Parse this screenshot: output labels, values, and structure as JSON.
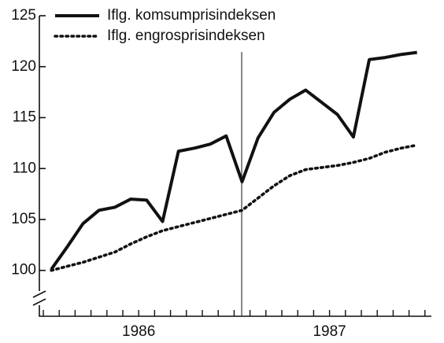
{
  "chart_data": {
    "type": "line",
    "categories": [
      null,
      null,
      null,
      null,
      null,
      null,
      null,
      null,
      null,
      null,
      null,
      null,
      null,
      null,
      null,
      null,
      null,
      null,
      null,
      null,
      null,
      null,
      null,
      null
    ],
    "year_labels": [
      "1986",
      "1987"
    ],
    "series": [
      {
        "name": "Iflg. komsumprisindeksen",
        "color": "#111111",
        "style": "solid",
        "values": [
          100.1,
          102.3,
          104.6,
          105.9,
          106.2,
          107.0,
          106.9,
          104.8,
          111.7,
          112.0,
          112.4,
          113.2,
          108.7,
          113.0,
          115.5,
          116.8,
          117.7,
          116.5,
          115.3,
          113.1,
          120.7,
          120.9,
          121.2,
          121.4
        ]
      },
      {
        "name": "Iflg. engrosprisindeksen",
        "color": "#111111",
        "style": "dotted",
        "values": [
          100.0,
          100.4,
          100.8,
          101.3,
          101.8,
          102.6,
          103.3,
          103.9,
          104.3,
          104.7,
          105.1,
          105.5,
          105.9,
          107.1,
          108.3,
          109.3,
          109.9,
          110.1,
          110.3,
          110.6,
          111.0,
          111.6,
          112.0,
          112.3
        ]
      }
    ],
    "ylim": [
      95.5,
      125
    ],
    "yticks": [
      100,
      105,
      110,
      115,
      120,
      125
    ],
    "legend": "upper left"
  }
}
